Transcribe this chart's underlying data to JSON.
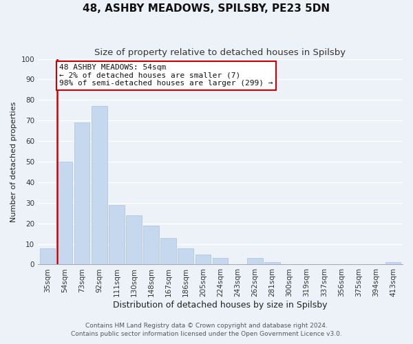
{
  "title": "48, ASHBY MEADOWS, SPILSBY, PE23 5DN",
  "subtitle": "Size of property relative to detached houses in Spilsby",
  "xlabel": "Distribution of detached houses by size in Spilsby",
  "ylabel": "Number of detached properties",
  "bar_labels": [
    "35sqm",
    "54sqm",
    "73sqm",
    "92sqm",
    "111sqm",
    "130sqm",
    "148sqm",
    "167sqm",
    "186sqm",
    "205sqm",
    "224sqm",
    "243sqm",
    "262sqm",
    "281sqm",
    "300sqm",
    "319sqm",
    "337sqm",
    "356sqm",
    "375sqm",
    "394sqm",
    "413sqm"
  ],
  "bar_values": [
    8,
    50,
    69,
    77,
    29,
    24,
    19,
    13,
    8,
    5,
    3,
    0,
    3,
    1,
    0,
    0,
    0,
    0,
    0,
    0,
    1
  ],
  "bar_color": "#c5d8ee",
  "bar_edge_color": "#a8c0dc",
  "highlight_bar_index": 1,
  "highlight_color": "#cc0000",
  "ylim": [
    0,
    100
  ],
  "yticks": [
    0,
    10,
    20,
    30,
    40,
    50,
    60,
    70,
    80,
    90,
    100
  ],
  "annotation_title": "48 ASHBY MEADOWS: 54sqm",
  "annotation_line1": "← 2% of detached houses are smaller (7)",
  "annotation_line2": "98% of semi-detached houses are larger (299) →",
  "annotation_box_color": "#ffffff",
  "annotation_box_edgecolor": "#cc0000",
  "footer_line1": "Contains HM Land Registry data © Crown copyright and database right 2024.",
  "footer_line2": "Contains public sector information licensed under the Open Government Licence v3.0.",
  "background_color": "#edf2f9",
  "grid_color": "#ffffff",
  "title_fontsize": 11,
  "subtitle_fontsize": 9.5,
  "xlabel_fontsize": 9,
  "ylabel_fontsize": 8,
  "tick_fontsize": 7.5,
  "annotation_fontsize": 8,
  "footer_fontsize": 6.5
}
